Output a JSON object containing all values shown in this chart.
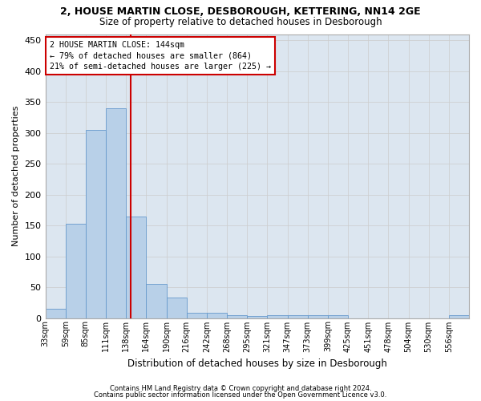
{
  "title1": "2, HOUSE MARTIN CLOSE, DESBOROUGH, KETTERING, NN14 2GE",
  "title2": "Size of property relative to detached houses in Desborough",
  "xlabel": "Distribution of detached houses by size in Desborough",
  "ylabel": "Number of detached properties",
  "footnote1": "Contains HM Land Registry data © Crown copyright and database right 2024.",
  "footnote2": "Contains public sector information licensed under the Open Government Licence v3.0.",
  "bar_labels": [
    "33sqm",
    "59sqm",
    "85sqm",
    "111sqm",
    "138sqm",
    "164sqm",
    "190sqm",
    "216sqm",
    "242sqm",
    "268sqm",
    "295sqm",
    "321sqm",
    "347sqm",
    "373sqm",
    "399sqm",
    "425sqm",
    "451sqm",
    "478sqm",
    "504sqm",
    "530sqm",
    "556sqm"
  ],
  "bar_values": [
    15,
    153,
    305,
    340,
    165,
    55,
    33,
    9,
    8,
    5,
    3,
    5,
    5,
    5,
    5,
    0,
    0,
    0,
    0,
    0,
    4
  ],
  "bar_color": "#b8d0e8",
  "bar_edge_color": "#6699cc",
  "ylim": [
    0,
    460
  ],
  "yticks": [
    0,
    50,
    100,
    150,
    200,
    250,
    300,
    350,
    400,
    450
  ],
  "property_size": 144,
  "vline_color": "#cc0000",
  "annotation_line1": "2 HOUSE MARTIN CLOSE: 144sqm",
  "annotation_line2": "← 79% of detached houses are smaller (864)",
  "annotation_line3": "21% of semi-detached houses are larger (225) →",
  "annotation_box_color": "#ffffff",
  "annotation_border_color": "#cc0000",
  "grid_color": "#cccccc",
  "background_color": "#dce6f0",
  "bin_width": 26
}
